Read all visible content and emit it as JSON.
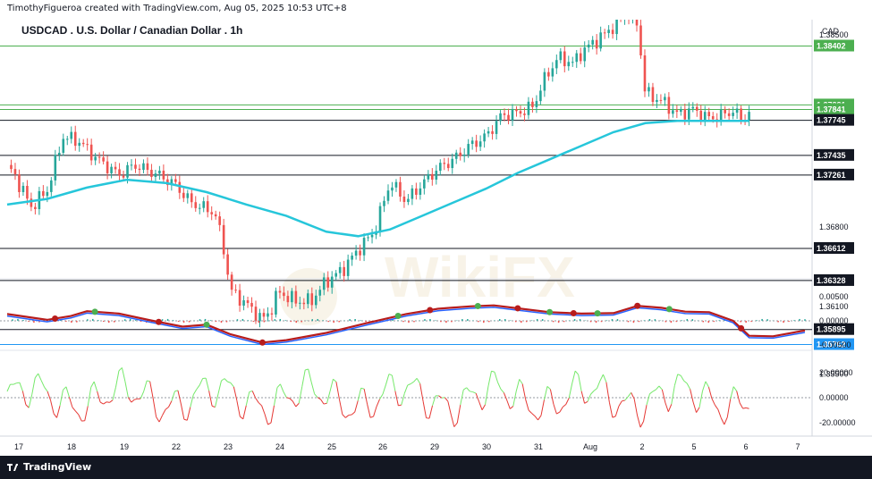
{
  "header_text": "TimothyFigueroa created with TradingView.com, Aug 05, 2025 10:53 UTC+8",
  "footer_brand": "TradingView",
  "watermark": "WikiFX",
  "chart_data": {
    "type": "candlestick",
    "title": "USDCAD . U.S. Dollar / Canadian Dollar . 1h",
    "currency": "CAD",
    "price_axis_ticks": [
      "1.38500",
      "1.36800",
      "1.36100",
      "1.35500"
    ],
    "x_tick_labels": [
      "17",
      "18",
      "19",
      "22",
      "23",
      "24",
      "25",
      "26",
      "29",
      "30",
      "31",
      "Aug",
      "2",
      "5",
      "6",
      "7"
    ],
    "horizontal_levels": [
      {
        "value": 1.38402,
        "color": "#4caf50",
        "label_style": "green"
      },
      {
        "value": 1.37881,
        "color": "#4caf50",
        "label_style": "green"
      },
      {
        "value": 1.37841,
        "color": "#4caf50",
        "label_style": "green"
      },
      {
        "value": 1.37745,
        "color": "#131722",
        "label_style": "black"
      },
      {
        "value": 1.37435,
        "color": "#131722",
        "label_style": "black"
      },
      {
        "value": 1.37261,
        "color": "#131722",
        "label_style": "black"
      },
      {
        "value": 1.36612,
        "color": "#131722",
        "label_style": "black"
      },
      {
        "value": 1.36328,
        "color": "#131722",
        "label_style": "black"
      },
      {
        "value": 1.35895,
        "color": "#131722",
        "label_style": "black"
      },
      {
        "value": 1.35762,
        "color": "#2196f3",
        "label_style": "blue"
      }
    ],
    "price_path": [
      [
        0,
        1.3735
      ],
      [
        0.01,
        1.3725
      ],
      [
        0.03,
        1.3698
      ],
      [
        0.05,
        1.3712
      ],
      [
        0.07,
        1.376
      ],
      [
        0.09,
        1.3756
      ],
      [
        0.11,
        1.3742
      ],
      [
        0.14,
        1.3726
      ],
      [
        0.16,
        1.3735
      ],
      [
        0.19,
        1.3726
      ],
      [
        0.21,
        1.3718
      ],
      [
        0.23,
        1.3702
      ],
      [
        0.26,
        1.3693
      ],
      [
        0.27,
        1.3667
      ],
      [
        0.28,
        1.3624
      ],
      [
        0.3,
        1.3612
      ],
      [
        0.32,
        1.3598
      ],
      [
        0.33,
        1.3606
      ],
      [
        0.34,
        1.3623
      ],
      [
        0.36,
        1.3615
      ],
      [
        0.38,
        1.3614
      ],
      [
        0.4,
        1.3632
      ],
      [
        0.42,
        1.3642
      ],
      [
        0.44,
        1.366
      ],
      [
        0.46,
        1.3676
      ],
      [
        0.48,
        1.372
      ],
      [
        0.5,
        1.3703
      ],
      [
        0.52,
        1.3718
      ],
      [
        0.54,
        1.3732
      ],
      [
        0.56,
        1.374
      ],
      [
        0.58,
        1.3752
      ],
      [
        0.6,
        1.376
      ],
      [
        0.62,
        1.3779
      ],
      [
        0.64,
        1.3781
      ],
      [
        0.66,
        1.3787
      ],
      [
        0.67,
        1.3806
      ],
      [
        0.69,
        1.383
      ],
      [
        0.71,
        1.3825
      ],
      [
        0.72,
        1.3835
      ],
      [
        0.74,
        1.3846
      ],
      [
        0.75,
        1.3851
      ],
      [
        0.77,
        1.3865
      ],
      [
        0.78,
        1.3869
      ],
      [
        0.79,
        1.386
      ],
      [
        0.8,
        1.3798
      ],
      [
        0.82,
        1.3792
      ],
      [
        0.84,
        1.378
      ],
      [
        0.86,
        1.3784
      ],
      [
        0.88,
        1.3776
      ],
      [
        0.9,
        1.378
      ],
      [
        0.91,
        1.3783
      ],
      [
        0.92,
        1.3776
      ],
      [
        0.93,
        1.3781
      ]
    ],
    "ma_path": [
      [
        0,
        1.37
      ],
      [
        0.05,
        1.3705
      ],
      [
        0.1,
        1.3715
      ],
      [
        0.15,
        1.3722
      ],
      [
        0.2,
        1.3719
      ],
      [
        0.25,
        1.3711
      ],
      [
        0.3,
        1.37
      ],
      [
        0.35,
        1.369
      ],
      [
        0.4,
        1.3676
      ],
      [
        0.44,
        1.3672
      ],
      [
        0.48,
        1.3678
      ],
      [
        0.52,
        1.369
      ],
      [
        0.56,
        1.3702
      ],
      [
        0.6,
        1.3714
      ],
      [
        0.64,
        1.3728
      ],
      [
        0.68,
        1.374
      ],
      [
        0.72,
        1.3752
      ],
      [
        0.76,
        1.3764
      ],
      [
        0.8,
        1.3772
      ],
      [
        0.84,
        1.3774
      ],
      [
        0.88,
        1.3774
      ],
      [
        0.93,
        1.3774
      ]
    ],
    "macd_ticks": [
      "0.00500",
      "0.00000",
      "-0.00500"
    ],
    "macd_line": [
      [
        0,
        0.0014
      ],
      [
        0.05,
        0.0002
      ],
      [
        0.08,
        0.001
      ],
      [
        0.1,
        0.002
      ],
      [
        0.14,
        0.0015
      ],
      [
        0.18,
        0.0001
      ],
      [
        0.22,
        -0.0012
      ],
      [
        0.25,
        -0.0008
      ],
      [
        0.28,
        -0.0028
      ],
      [
        0.32,
        -0.0045
      ],
      [
        0.35,
        -0.004
      ],
      [
        0.4,
        -0.0025
      ],
      [
        0.45,
        -0.0005
      ],
      [
        0.5,
        0.0014
      ],
      [
        0.54,
        0.0025
      ],
      [
        0.58,
        0.003
      ],
      [
        0.61,
        0.0032
      ],
      [
        0.64,
        0.0026
      ],
      [
        0.68,
        0.0018
      ],
      [
        0.72,
        0.0015
      ],
      [
        0.76,
        0.0016
      ],
      [
        0.79,
        0.0031
      ],
      [
        0.82,
        0.0027
      ],
      [
        0.85,
        0.0019
      ],
      [
        0.88,
        0.0018
      ],
      [
        0.91,
        0.0
      ],
      [
        0.93,
        -0.0031
      ],
      [
        0.96,
        -0.0032
      ],
      [
        1.0,
        -0.002
      ]
    ],
    "rsi_ticks": [
      "20.00000",
      "0.00000",
      "-20.00000"
    ]
  }
}
